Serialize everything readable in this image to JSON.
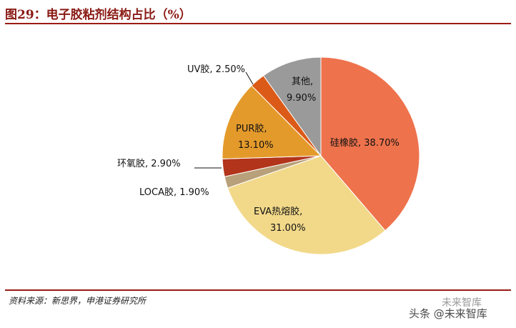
{
  "title": "图29：电子胶粘剂结构占比（%）",
  "source": "资料来源：新思界，申港证券研究所",
  "watermark": {
    "line1": "未来智库",
    "line2": "头条 @未来智库"
  },
  "chart_data": {
    "type": "pie",
    "title": "图29：电子胶粘剂结构占比（%）",
    "slices": [
      {
        "name": "硅橡胶",
        "value": 38.7,
        "label": "硅橡胶, 38.70%",
        "color": "#ee724c"
      },
      {
        "name": "EVA热熔胶",
        "value": 31.0,
        "label_line1": "EVA热熔胶,",
        "label_line2": "31.00%",
        "color": "#f2d98a"
      },
      {
        "name": "LOCA胶",
        "value": 1.9,
        "label": "LOCA胶, 1.90%",
        "color": "#b8a07a"
      },
      {
        "name": "环氧胶",
        "value": 2.9,
        "label": "环氧胶, 2.90%",
        "color": "#b2341a"
      },
      {
        "name": "PUR胶",
        "value": 13.1,
        "label_line1": "PUR胶,",
        "label_line2": "13.10%",
        "color": "#e49a2b"
      },
      {
        "name": "UV胶",
        "value": 2.5,
        "label": "UV胶, 2.50%",
        "color": "#dc5a17"
      },
      {
        "name": "其他",
        "value": 9.9,
        "label_line1": "其他,",
        "label_line2": "9.90%",
        "color": "#9a9a9a"
      }
    ]
  }
}
